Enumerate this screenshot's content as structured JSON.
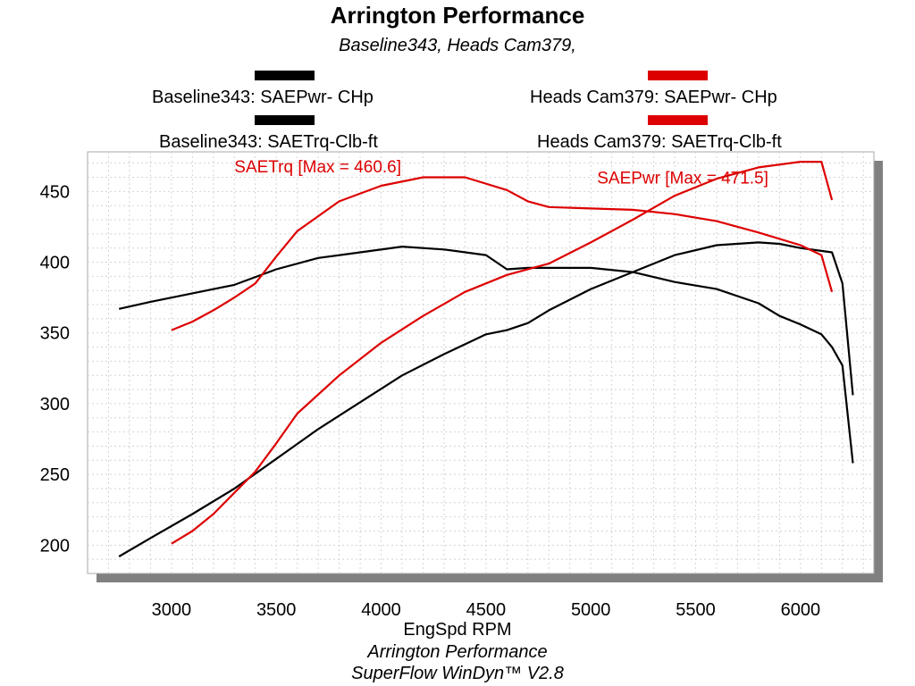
{
  "header": {
    "title": "Arrington Performance",
    "subtitle": "Baseline343, Heads Cam379,"
  },
  "legend": [
    {
      "label": "Baseline343: SAEPwr- CHp",
      "color": "#000000"
    },
    {
      "label": "Baseline343: SAETrq-Clb-ft",
      "color": "#000000"
    },
    {
      "label": "Heads Cam379: SAEPwr- CHp",
      "color": "#dd0000"
    },
    {
      "label": "Heads Cam379: SAETrq-Clb-ft",
      "color": "#dd0000"
    }
  ],
  "footer": {
    "xlabel": "EngSpd  RPM",
    "line1": "Arrington Performance",
    "line2": "SuperFlow WinDyn™ V2.8"
  },
  "chart_data": {
    "type": "line",
    "xlabel": "EngSpd  RPM",
    "ylabel": "",
    "xlim": [
      2600,
      6350
    ],
    "ylim": [
      180,
      478
    ],
    "x_ticks": [
      3000,
      3500,
      4000,
      4500,
      5000,
      5500,
      6000
    ],
    "y_ticks": [
      200,
      250,
      300,
      350,
      400,
      450
    ],
    "grid": true,
    "legend_position": "top",
    "annotations": [
      {
        "text": "SAETrq [Max = 460.6]",
        "color": "#dd0000",
        "x": 3300,
        "y": 468
      },
      {
        "text": "SAEPwr [Max = 471.5]",
        "color": "#dd0000",
        "x": 5030,
        "y": 460
      }
    ],
    "series": [
      {
        "name": "Baseline343: SAEPwr- CHp",
        "color": "#000000",
        "x": [
          2750,
          2900,
          3100,
          3300,
          3500,
          3700,
          3900,
          4100,
          4300,
          4500,
          4600,
          4700,
          4800,
          5000,
          5200,
          5400,
          5600,
          5800,
          5900,
          6000,
          6100,
          6150,
          6200,
          6250
        ],
        "y": [
          192,
          205,
          222,
          240,
          261,
          282,
          301,
          320,
          335,
          349,
          352,
          357,
          366,
          381,
          393,
          405,
          412,
          414,
          413,
          410,
          408,
          407,
          385,
          306
        ]
      },
      {
        "name": "Baseline343: SAETrq-Clb-ft",
        "color": "#000000",
        "x": [
          2750,
          2900,
          3100,
          3300,
          3500,
          3700,
          3900,
          4100,
          4300,
          4500,
          4600,
          4700,
          4800,
          5000,
          5200,
          5400,
          5600,
          5800,
          5900,
          6000,
          6100,
          6150,
          6200,
          6250
        ],
        "y": [
          367,
          372,
          378,
          384,
          395,
          403,
          407,
          411,
          409,
          405,
          395,
          396,
          396,
          396,
          393,
          386,
          381,
          371,
          362,
          356,
          349,
          340,
          327,
          258
        ]
      },
      {
        "name": "Heads Cam379: SAEPwr- CHp",
        "color": "#dd0000",
        "x": [
          3000,
          3100,
          3200,
          3300,
          3400,
          3500,
          3600,
          3800,
          4000,
          4200,
          4400,
          4600,
          4800,
          5000,
          5200,
          5400,
          5600,
          5800,
          6000,
          6100,
          6150
        ],
        "y": [
          201,
          210,
          222,
          237,
          252,
          272,
          293,
          320,
          343,
          362,
          379,
          391,
          399,
          414,
          430,
          447,
          459,
          467,
          471,
          471,
          444
        ]
      },
      {
        "name": "Heads Cam379: SAETrq-Clb-ft",
        "color": "#dd0000",
        "x": [
          3000,
          3100,
          3200,
          3300,
          3400,
          3500,
          3600,
          3800,
          4000,
          4200,
          4400,
          4600,
          4700,
          4800,
          5000,
          5200,
          5400,
          5600,
          5800,
          6000,
          6100,
          6150
        ],
        "y": [
          352,
          358,
          366,
          375,
          385,
          404,
          422,
          443,
          454,
          460,
          460,
          451,
          443,
          439,
          438,
          437,
          434,
          429,
          421,
          412,
          405,
          379
        ]
      }
    ]
  }
}
